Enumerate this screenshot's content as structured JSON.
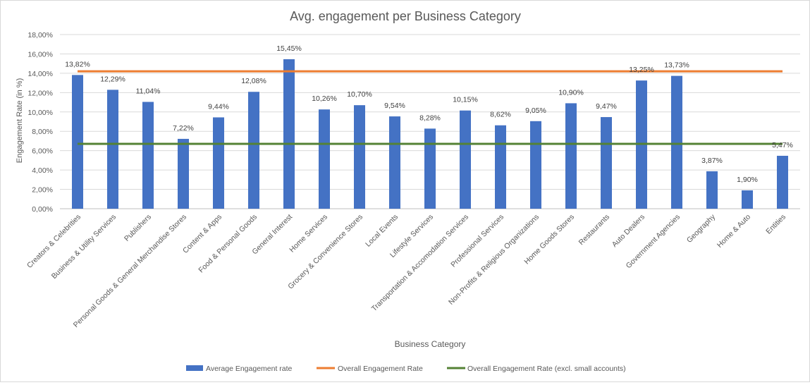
{
  "chart_data": {
    "type": "bar",
    "title": "Avg. engagement per Business Category",
    "xlabel": "Business Category",
    "ylabel": "Engagement  Rate (in %)",
    "ylim": [
      0,
      18
    ],
    "y_ticks": [
      "0,00%",
      "2,00%",
      "4,00%",
      "6,00%",
      "8,00%",
      "10,00%",
      "12,00%",
      "14,00%",
      "16,00%",
      "18,00%"
    ],
    "grid": true,
    "legend_position": "bottom",
    "categories": [
      "Creators & Celebrities",
      "Business & Utility Services",
      "Publishers",
      "Personal Goods & General Merchandise Stores",
      "Content & Apps",
      "Food & Personal Goods",
      "General Interest",
      "Home Services",
      "Grocery & Convenience Stores",
      "Local Events",
      "Lifestyle Services",
      "Transportation & Accomodation Services",
      "Professional Services",
      "Non-Profits & Religious Organizations",
      "Home Goods Stores",
      "Restaurants",
      "Auto Dealers",
      "Government Agencies",
      "Geography",
      "Home & Auto",
      "Entities"
    ],
    "series": [
      {
        "name": "Average Engagement rate",
        "type": "bar",
        "color": "#4472c4",
        "values": [
          13.82,
          12.29,
          11.04,
          7.22,
          9.44,
          12.08,
          15.45,
          10.26,
          10.7,
          9.54,
          8.28,
          10.15,
          8.62,
          9.05,
          10.9,
          9.47,
          13.25,
          13.73,
          3.87,
          1.9,
          5.47
        ],
        "labels": [
          "13,82%",
          "12,29%",
          "11,04%",
          "7,22%",
          "9,44%",
          "12,08%",
          "15,45%",
          "10,26%",
          "10,70%",
          "9,54%",
          "8,28%",
          "10,15%",
          "8,62%",
          "9,05%",
          "10,90%",
          "9,47%",
          "13,25%",
          "13,73%",
          "3,87%",
          "1,90%",
          "5,47%"
        ]
      },
      {
        "name": "Overall Engagement Rate",
        "type": "line",
        "color": "#ed7d31",
        "value": 14.2
      },
      {
        "name": "Overall Engagement Rate (excl. small accounts)",
        "type": "line",
        "color": "#548235",
        "value": 6.7
      }
    ]
  }
}
